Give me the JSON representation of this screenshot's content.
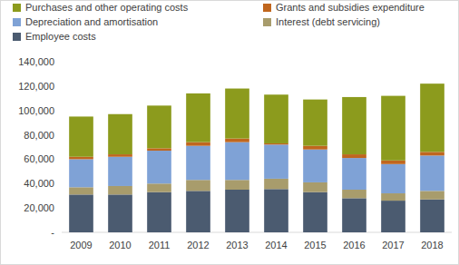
{
  "chart_data": {
    "type": "bar",
    "stacked": true,
    "legend": "top",
    "grid": false,
    "categories": [
      "2009",
      "2010",
      "2011",
      "2012",
      "2013",
      "2014",
      "2015",
      "2016",
      "2017",
      "2018"
    ],
    "series": [
      {
        "name": "Employee costs",
        "color": "#4b5b70",
        "values": [
          31000,
          31000,
          33000,
          34000,
          35000,
          35500,
          33000,
          28000,
          26000,
          27000
        ]
      },
      {
        "name": "Interest (debt servicing)",
        "color": "#a89c6c",
        "values": [
          6000,
          7000,
          7000,
          9000,
          8000,
          8500,
          8000,
          7000,
          6000,
          7000
        ]
      },
      {
        "name": "Depreciation and amortisation",
        "color": "#7fa2d6",
        "values": [
          23000,
          24000,
          27000,
          28000,
          31000,
          28000,
          27000,
          26000,
          24000,
          29000
        ]
      },
      {
        "name": "Grants and subsidies expenditure",
        "color": "#c0661e",
        "values": [
          2000,
          2000,
          2000,
          3000,
          3000,
          1000,
          3000,
          3000,
          3000,
          3000
        ]
      },
      {
        "name": "Purchases and other operating costs",
        "color": "#8c9b1d",
        "values": [
          33000,
          33000,
          35000,
          40000,
          41000,
          40000,
          38000,
          47000,
          53000,
          56000
        ]
      }
    ],
    "ylim": [
      0,
      140000
    ],
    "yticks": [
      {
        "value": 0,
        "label": "-"
      },
      {
        "value": 20000,
        "label": "20,000"
      },
      {
        "value": 40000,
        "label": "40,000"
      },
      {
        "value": 60000,
        "label": "60,000"
      },
      {
        "value": 80000,
        "label": "80,000"
      },
      {
        "value": 100000,
        "label": "100,000"
      },
      {
        "value": 120000,
        "label": "120,000"
      },
      {
        "value": 140000,
        "label": "140,000"
      }
    ]
  }
}
